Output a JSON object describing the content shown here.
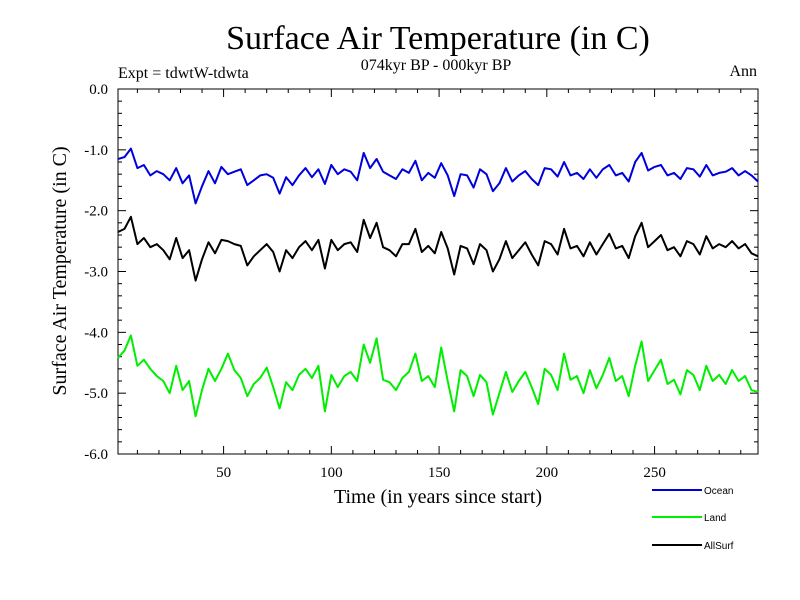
{
  "chart_data": {
    "type": "line",
    "title": "Surface Air Temperature (in C)",
    "subtitle": "074kyr BP - 000kyr BP",
    "expt_label": "Expt = tdwtW-tdwta",
    "season_label": "Ann",
    "xlabel": "Time (in years since start)",
    "ylabel": "Surface Air Temperature (in C)",
    "xlim": [
      1,
      298
    ],
    "ylim": [
      -6.0,
      0.0
    ],
    "x_ticks": [
      50,
      100,
      150,
      200,
      250
    ],
    "x_tick_labels": [
      "50",
      "100",
      "150",
      "200",
      "250"
    ],
    "y_ticks": [
      0.0,
      -1.0,
      -2.0,
      -3.0,
      -4.0,
      -5.0,
      -6.0
    ],
    "y_tick_labels": [
      "0.0",
      "-1.0",
      "-2.0",
      "-3.0",
      "-4.0",
      "-5.0",
      "-6.0"
    ],
    "x_start": 1,
    "x_step": 3,
    "series": [
      {
        "name": "Ocean",
        "color": "#0000dd",
        "values": [
          -1.15,
          -1.12,
          -0.98,
          -1.3,
          -1.25,
          -1.42,
          -1.35,
          -1.4,
          -1.5,
          -1.3,
          -1.55,
          -1.42,
          -1.88,
          -1.6,
          -1.35,
          -1.55,
          -1.28,
          -1.4,
          -1.36,
          -1.32,
          -1.58,
          -1.5,
          -1.42,
          -1.4,
          -1.46,
          -1.72,
          -1.45,
          -1.58,
          -1.42,
          -1.3,
          -1.45,
          -1.32,
          -1.56,
          -1.25,
          -1.4,
          -1.32,
          -1.36,
          -1.5,
          -1.05,
          -1.3,
          -1.15,
          -1.36,
          -1.42,
          -1.48,
          -1.32,
          -1.38,
          -1.18,
          -1.5,
          -1.38,
          -1.46,
          -1.22,
          -1.42,
          -1.76,
          -1.4,
          -1.42,
          -1.62,
          -1.32,
          -1.4,
          -1.68,
          -1.55,
          -1.3,
          -1.52,
          -1.42,
          -1.35,
          -1.48,
          -1.58,
          -1.3,
          -1.32,
          -1.44,
          -1.2,
          -1.42,
          -1.38,
          -1.48,
          -1.32,
          -1.46,
          -1.32,
          -1.25,
          -1.42,
          -1.38,
          -1.52,
          -1.2,
          -1.05,
          -1.34,
          -1.28,
          -1.25,
          -1.42,
          -1.38,
          -1.48,
          -1.3,
          -1.32,
          -1.44,
          -1.25,
          -1.42,
          -1.38,
          -1.36,
          -1.3,
          -1.42,
          -1.35,
          -1.42,
          -1.52
        ]
      },
      {
        "name": "Land",
        "color": "#00ee00",
        "values": [
          -4.42,
          -4.3,
          -4.05,
          -4.55,
          -4.45,
          -4.6,
          -4.72,
          -4.8,
          -5.0,
          -4.55,
          -4.95,
          -4.8,
          -5.38,
          -4.95,
          -4.6,
          -4.8,
          -4.6,
          -4.35,
          -4.62,
          -4.75,
          -5.05,
          -4.85,
          -4.75,
          -4.58,
          -4.9,
          -5.25,
          -4.82,
          -4.95,
          -4.7,
          -4.6,
          -4.75,
          -4.55,
          -5.3,
          -4.7,
          -4.9,
          -4.72,
          -4.65,
          -4.8,
          -4.2,
          -4.5,
          -4.1,
          -4.78,
          -4.82,
          -4.95,
          -4.75,
          -4.65,
          -4.35,
          -4.8,
          -4.72,
          -4.9,
          -4.25,
          -4.8,
          -5.3,
          -4.62,
          -4.72,
          -5.05,
          -4.7,
          -4.82,
          -5.35,
          -5.0,
          -4.65,
          -4.98,
          -4.8,
          -4.65,
          -4.9,
          -5.18,
          -4.6,
          -4.7,
          -4.95,
          -4.35,
          -4.78,
          -4.72,
          -5.0,
          -4.62,
          -4.92,
          -4.7,
          -4.42,
          -4.8,
          -4.72,
          -5.05,
          -4.55,
          -4.15,
          -4.8,
          -4.62,
          -4.45,
          -4.85,
          -4.78,
          -5.02,
          -4.62,
          -4.7,
          -4.95,
          -4.55,
          -4.8,
          -4.7,
          -4.85,
          -4.62,
          -4.8,
          -4.72,
          -4.95,
          -4.98
        ]
      },
      {
        "name": "AllSurf",
        "color": "#000000",
        "values": [
          -2.35,
          -2.3,
          -2.1,
          -2.55,
          -2.45,
          -2.6,
          -2.55,
          -2.65,
          -2.8,
          -2.45,
          -2.78,
          -2.65,
          -3.15,
          -2.8,
          -2.52,
          -2.7,
          -2.48,
          -2.5,
          -2.55,
          -2.58,
          -2.9,
          -2.75,
          -2.65,
          -2.55,
          -2.68,
          -3.0,
          -2.65,
          -2.78,
          -2.6,
          -2.5,
          -2.65,
          -2.48,
          -2.95,
          -2.48,
          -2.65,
          -2.55,
          -2.52,
          -2.68,
          -2.15,
          -2.45,
          -2.2,
          -2.6,
          -2.65,
          -2.75,
          -2.55,
          -2.55,
          -2.3,
          -2.68,
          -2.58,
          -2.7,
          -2.35,
          -2.62,
          -3.05,
          -2.58,
          -2.62,
          -2.88,
          -2.55,
          -2.65,
          -3.0,
          -2.8,
          -2.5,
          -2.78,
          -2.65,
          -2.52,
          -2.72,
          -2.9,
          -2.5,
          -2.55,
          -2.72,
          -2.3,
          -2.62,
          -2.58,
          -2.75,
          -2.52,
          -2.72,
          -2.55,
          -2.38,
          -2.62,
          -2.58,
          -2.78,
          -2.42,
          -2.2,
          -2.6,
          -2.5,
          -2.4,
          -2.65,
          -2.6,
          -2.75,
          -2.5,
          -2.55,
          -2.72,
          -2.42,
          -2.62,
          -2.55,
          -2.6,
          -2.5,
          -2.62,
          -2.55,
          -2.7,
          -2.75
        ]
      }
    ],
    "legend": [
      {
        "name": "Ocean",
        "color": "#0000dd"
      },
      {
        "name": "Land",
        "color": "#00ee00"
      },
      {
        "name": "AllSurf",
        "color": "#000000"
      }
    ]
  }
}
